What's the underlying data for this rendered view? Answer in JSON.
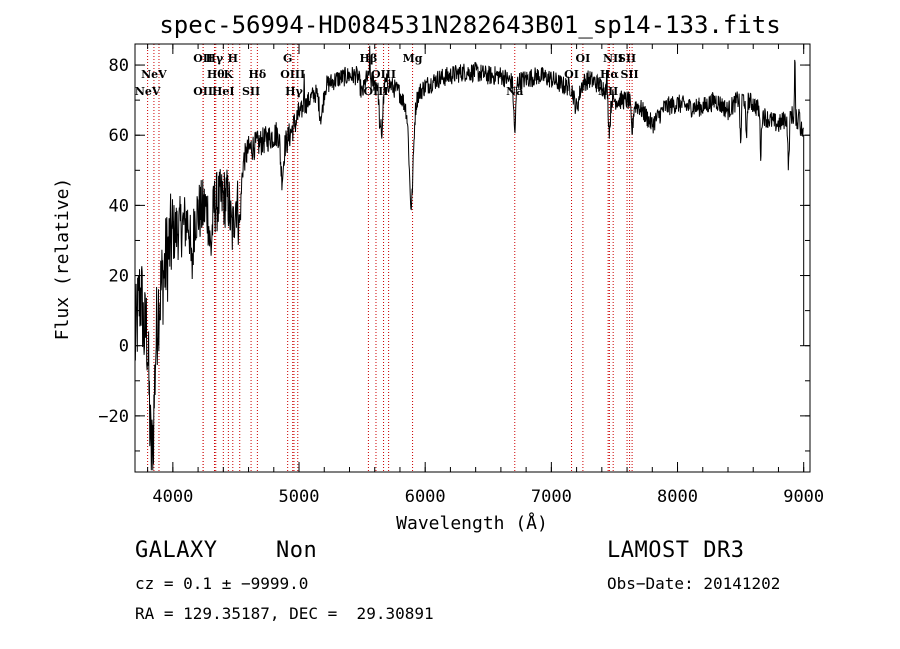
{
  "chart_data": {
    "type": "line",
    "title": "spec-56994-HD084531N282643B01_sp14-133.fits",
    "xlabel": "Wavelength (Å)",
    "ylabel": "Flux (relative)",
    "xlim": [
      3700,
      9050
    ],
    "ylim": [
      -36,
      86
    ],
    "xticks": [
      {
        "value": 4000,
        "label": "4000"
      },
      {
        "value": 5000,
        "label": "5000"
      },
      {
        "value": 6000,
        "label": "6000"
      },
      {
        "value": 7000,
        "label": "7000"
      },
      {
        "value": 8000,
        "label": "8000"
      },
      {
        "value": 9000,
        "label": "9000"
      }
    ],
    "yticks": [
      {
        "value": -20,
        "label": "−20"
      },
      {
        "value": 0,
        "label": "0"
      },
      {
        "value": 20,
        "label": "20"
      },
      {
        "value": 40,
        "label": "40"
      },
      {
        "value": 60,
        "label": "60"
      },
      {
        "value": 80,
        "label": "80"
      }
    ],
    "line_color": "#cc0000",
    "lines": [
      {
        "wl": 3800,
        "label": "NeV",
        "row": 2
      },
      {
        "wl": 3850,
        "label": "NeV",
        "row": 1
      },
      {
        "wl": 3890,
        "label": "",
        "row": 0
      },
      {
        "wl": 4240,
        "label": "OII",
        "row": 0
      },
      {
        "wl": 4240,
        "label": "OII",
        "row": 2
      },
      {
        "wl": 4330,
        "label": "Hγ",
        "row": 0
      },
      {
        "wl": 4340,
        "label": "Hθ",
        "row": 1
      },
      {
        "wl": 4400,
        "label": "HeI",
        "row": 2
      },
      {
        "wl": 4440,
        "label": "K",
        "row": 1
      },
      {
        "wl": 4475,
        "label": "H",
        "row": 0
      },
      {
        "wl": 4530,
        "label": "",
        "row": 0
      },
      {
        "wl": 4620,
        "label": "SII",
        "row": 2
      },
      {
        "wl": 4670,
        "label": "Hδ",
        "row": 1
      },
      {
        "wl": 4910,
        "label": "G",
        "row": 0
      },
      {
        "wl": 4950,
        "label": "OIII",
        "row": 1
      },
      {
        "wl": 4960,
        "label": "Hγ",
        "row": 2
      },
      {
        "wl": 4990,
        "label": "",
        "row": 0
      },
      {
        "wl": 5550,
        "label": "Hβ",
        "row": 0
      },
      {
        "wl": 5610,
        "label": "OIII",
        "row": 2
      },
      {
        "wl": 5670,
        "label": "OIII",
        "row": 1
      },
      {
        "wl": 5710,
        "label": "",
        "row": 0
      },
      {
        "wl": 5900,
        "label": "Mg",
        "row": 0
      },
      {
        "wl": 6710,
        "label": "Na",
        "row": 2
      },
      {
        "wl": 7160,
        "label": "OI",
        "row": 1
      },
      {
        "wl": 7250,
        "label": "OI",
        "row": 0
      },
      {
        "wl": 7450,
        "label": "NII",
        "row": 2
      },
      {
        "wl": 7460,
        "label": "Hα",
        "row": 1
      },
      {
        "wl": 7490,
        "label": "NII",
        "row": 0
      },
      {
        "wl": 7600,
        "label": "SII",
        "row": 0
      },
      {
        "wl": 7620,
        "label": "SII",
        "row": 1
      },
      {
        "wl": 7640,
        "label": "",
        "row": 0
      }
    ],
    "spectrum_knots": [
      [
        3700,
        0
      ],
      [
        3760,
        25
      ],
      [
        3800,
        15
      ],
      [
        3850,
        5
      ],
      [
        3900,
        15
      ],
      [
        3950,
        25
      ],
      [
        4000,
        32
      ],
      [
        4100,
        35
      ],
      [
        4200,
        38
      ],
      [
        4300,
        40
      ],
      [
        4400,
        42
      ],
      [
        4500,
        43
      ],
      [
        4520,
        45
      ],
      [
        4550,
        52
      ],
      [
        4600,
        56
      ],
      [
        4700,
        58
      ],
      [
        4800,
        60
      ],
      [
        4850,
        61
      ],
      [
        4900,
        58
      ],
      [
        5000,
        66
      ],
      [
        5100,
        71
      ],
      [
        5200,
        74
      ],
      [
        5300,
        76
      ],
      [
        5400,
        77
      ],
      [
        5500,
        77
      ],
      [
        5600,
        75
      ],
      [
        5700,
        75
      ],
      [
        5800,
        72
      ],
      [
        5880,
        65
      ],
      [
        5950,
        72
      ],
      [
        6000,
        74
      ],
      [
        6100,
        76
      ],
      [
        6200,
        77
      ],
      [
        6300,
        78
      ],
      [
        6400,
        78
      ],
      [
        6500,
        77
      ],
      [
        6600,
        77
      ],
      [
        6700,
        75
      ],
      [
        6800,
        76
      ],
      [
        6900,
        77
      ],
      [
        7000,
        76
      ],
      [
        7100,
        74
      ],
      [
        7200,
        74
      ],
      [
        7300,
        76
      ],
      [
        7400,
        74
      ],
      [
        7500,
        70
      ],
      [
        7600,
        70
      ],
      [
        7700,
        68
      ],
      [
        7800,
        63
      ],
      [
        7900,
        68
      ],
      [
        8000,
        69
      ],
      [
        8100,
        68
      ],
      [
        8200,
        68
      ],
      [
        8300,
        70
      ],
      [
        8400,
        67
      ],
      [
        8500,
        71
      ],
      [
        8600,
        69
      ],
      [
        8700,
        65
      ],
      [
        8800,
        63
      ],
      [
        8900,
        66
      ],
      [
        8960,
        64
      ],
      [
        9000,
        60
      ]
    ],
    "absorption_dips": [
      [
        3770,
        18,
        15
      ],
      [
        3830,
        40,
        20
      ],
      [
        4150,
        15,
        10
      ],
      [
        4300,
        12,
        12
      ],
      [
        4470,
        10,
        15
      ],
      [
        4530,
        12,
        12
      ],
      [
        4865,
        12,
        12
      ],
      [
        5175,
        8,
        15
      ],
      [
        5500,
        5,
        15
      ],
      [
        5650,
        18,
        12
      ],
      [
        5890,
        26,
        15
      ],
      [
        6710,
        14,
        8
      ],
      [
        7200,
        6,
        20
      ],
      [
        7460,
        10,
        8
      ],
      [
        7640,
        8,
        8
      ],
      [
        8500,
        14,
        5
      ],
      [
        8545,
        12,
        5
      ],
      [
        8660,
        12,
        5
      ],
      [
        8880,
        14,
        6
      ]
    ],
    "spikes": [
      [
        5040,
        8
      ],
      [
        5560,
        7
      ],
      [
        5650,
        6
      ],
      [
        7440,
        5
      ],
      [
        8930,
        17
      ],
      [
        8965,
        5
      ]
    ]
  },
  "info": {
    "object_class": "GALAXY",
    "subclass": "Non",
    "survey": "LAMOST DR3",
    "redshift": "cz = 0.1 ± −9999.0",
    "obs_date": "Obs−Date: 20141202",
    "coords": "RA = 129.35187, DEC =  29.30891"
  }
}
